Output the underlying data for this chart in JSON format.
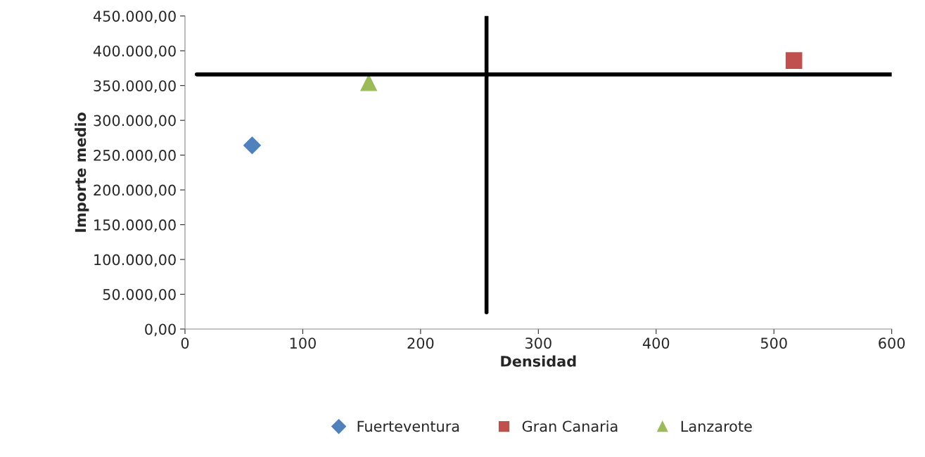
{
  "chart_data": {
    "type": "scatter",
    "xlabel": "Densidad",
    "ylabel": "Importe medio",
    "series": [
      {
        "name": "Fuerteventura",
        "color": "#4f81bd",
        "marker": "diamond",
        "x": [
          57
        ],
        "values": [
          264000
        ]
      },
      {
        "name": "Gran Canaria",
        "color": "#c0504d",
        "marker": "square",
        "x": [
          517
        ],
        "values": [
          386000
        ]
      },
      {
        "name": "Lanzarote",
        "color": "#9bbb59",
        "marker": "triangle",
        "x": [
          156
        ],
        "values": [
          354000
        ]
      },
      {
        "type": "line",
        "color": "#000000",
        "marker": "none",
        "x": [
          256,
          256
        ],
        "values": [
          24000,
          450000
        ]
      },
      {
        "type": "line",
        "color": "#000000",
        "marker": "none",
        "x": [
          10,
          600
        ],
        "values": [
          366000,
          366000
        ]
      }
    ],
    "xlim": [
      0,
      600
    ],
    "xticks": [
      0,
      100,
      200,
      300,
      400,
      500,
      600
    ],
    "ylim": [
      0,
      450000
    ],
    "yticks": [
      {
        "value": 0,
        "label": "0,00"
      },
      {
        "value": 50000,
        "label": "50.000,00"
      },
      {
        "value": 100000,
        "label": "100.000,00"
      },
      {
        "value": 150000,
        "label": "150.000,00"
      },
      {
        "value": 200000,
        "label": "200.000,00"
      },
      {
        "value": 250000,
        "label": "250.000,00"
      },
      {
        "value": 300000,
        "label": "300.000,00"
      },
      {
        "value": 350000,
        "label": "350.000,00"
      },
      {
        "value": 400000,
        "label": "400.000,00"
      },
      {
        "value": 450000,
        "label": "450.000,00"
      }
    ],
    "grid": false,
    "legend": "bottom"
  }
}
